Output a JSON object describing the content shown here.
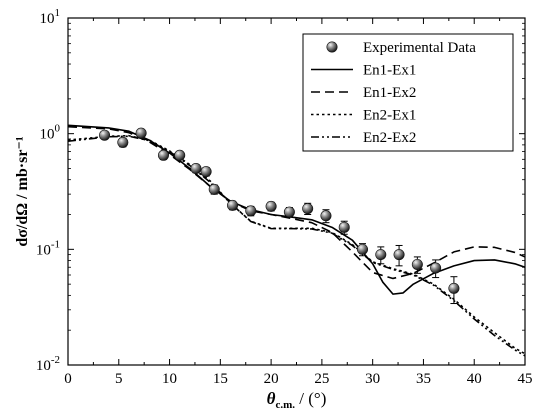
{
  "chart_data": {
    "type": "scatter",
    "xlabel": {
      "main": "θ",
      "sub": "c.m.",
      "rest": " / (°)"
    },
    "ylabel": "dσ/dΩ / mb·sr⁻¹",
    "xlim": [
      0,
      45
    ],
    "ylim": [
      0.01,
      10
    ],
    "yscale": "log",
    "x_ticks": [
      "0",
      "5",
      "10",
      "15",
      "20",
      "25",
      "30",
      "35",
      "40",
      "45"
    ],
    "y_ticks": [
      {
        "base": "10",
        "exp": "-2"
      },
      {
        "base": "10",
        "exp": "-1"
      },
      {
        "base": "10",
        "exp": "0"
      },
      {
        "base": "10",
        "exp": "1"
      }
    ],
    "legend_position": "top-right",
    "series": [
      {
        "name": "Experimental Data",
        "kind": "points",
        "x": [
          3.6,
          5.4,
          7.2,
          9.4,
          11.0,
          12.6,
          13.6,
          14.4,
          16.2,
          18.0,
          20.0,
          21.8,
          23.6,
          25.4,
          27.2,
          29.0,
          30.8,
          32.6,
          34.4,
          36.2,
          38.0
        ],
        "y": [
          0.97,
          0.84,
          1.01,
          0.65,
          0.65,
          0.5,
          0.47,
          0.33,
          0.24,
          0.215,
          0.235,
          0.21,
          0.225,
          0.195,
          0.155,
          0.1,
          0.09,
          0.09,
          0.074,
          0.069,
          0.046
        ],
        "yerr": [
          0.05,
          0.07,
          0.06,
          0.05,
          0.04,
          0.04,
          0.04,
          0.03,
          0.02,
          0.02,
          0.02,
          0.02,
          0.025,
          0.025,
          0.02,
          0.012,
          0.015,
          0.018,
          0.012,
          0.012,
          0.012
        ]
      },
      {
        "name": "En1-Ex1",
        "kind": "line",
        "dash": "solid",
        "x": [
          0,
          4,
          6,
          8,
          10,
          12,
          14,
          16,
          18,
          20,
          22,
          24,
          26,
          28,
          30,
          31,
          32,
          33,
          34,
          36,
          38,
          40,
          42,
          44,
          45
        ],
        "y": [
          1.18,
          1.12,
          1.05,
          0.88,
          0.68,
          0.5,
          0.35,
          0.26,
          0.22,
          0.2,
          0.19,
          0.18,
          0.155,
          0.12,
          0.075,
          0.052,
          0.041,
          0.042,
          0.05,
          0.062,
          0.072,
          0.08,
          0.081,
          0.075,
          0.07
        ]
      },
      {
        "name": "En1-Ex2",
        "kind": "line",
        "dash": "dashed",
        "x": [
          0,
          4,
          6,
          8,
          10,
          12,
          14,
          16,
          18,
          20,
          22,
          24,
          26,
          28,
          30,
          32,
          34,
          36,
          38,
          40,
          42,
          44,
          45
        ],
        "y": [
          1.15,
          1.1,
          1.02,
          0.85,
          0.66,
          0.49,
          0.35,
          0.26,
          0.215,
          0.2,
          0.185,
          0.17,
          0.14,
          0.095,
          0.063,
          0.056,
          0.062,
          0.076,
          0.095,
          0.105,
          0.104,
          0.094,
          0.086
        ]
      },
      {
        "name": "En2-Ex1",
        "kind": "line",
        "dash": "dotted",
        "x": [
          0,
          4,
          6,
          8,
          10,
          12,
          14,
          16,
          18,
          20,
          22,
          24,
          26,
          28,
          30,
          32,
          34,
          36,
          38,
          40,
          42,
          44,
          45
        ],
        "y": [
          0.88,
          0.95,
          0.96,
          0.88,
          0.71,
          0.54,
          0.39,
          0.25,
          0.175,
          0.152,
          0.152,
          0.152,
          0.14,
          0.11,
          0.078,
          0.068,
          0.061,
          0.05,
          0.037,
          0.026,
          0.019,
          0.014,
          0.0125
        ]
      },
      {
        "name": "En2-Ex2",
        "kind": "line",
        "dash": "dash-dot-dot",
        "x": [
          0,
          4,
          6,
          8,
          10,
          12,
          14,
          16,
          18,
          20,
          22,
          24,
          26,
          28,
          30,
          32,
          34,
          36,
          38,
          40,
          42,
          44,
          45
        ],
        "y": [
          0.86,
          0.94,
          0.95,
          0.87,
          0.7,
          0.53,
          0.38,
          0.25,
          0.174,
          0.151,
          0.151,
          0.15,
          0.138,
          0.108,
          0.077,
          0.067,
          0.06,
          0.049,
          0.036,
          0.025,
          0.018,
          0.0135,
          0.012
        ]
      }
    ]
  }
}
